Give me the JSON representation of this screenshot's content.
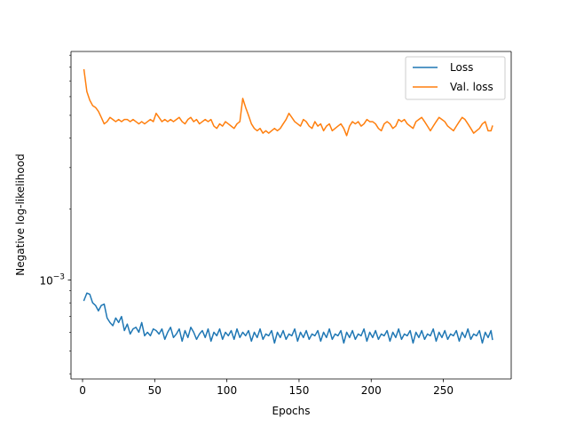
{
  "chart_data": {
    "type": "line",
    "xlabel": "Epochs",
    "ylabel": "Negative log-likelihood",
    "xlim": [
      -8,
      297
    ],
    "ylim_log10": [
      -3.42,
      -2.03
    ],
    "y_scale": "log",
    "x_ticks": [
      0,
      50,
      100,
      150,
      200,
      250
    ],
    "x_tick_labels": [
      "0",
      "50",
      "100",
      "150",
      "200",
      "250"
    ],
    "y_major_ticks": [
      {
        "value": 0.001,
        "label_base": "10",
        "label_exp": "−3"
      }
    ],
    "grid": false,
    "legend_position": "upper right",
    "series": [
      {
        "name": "Loss",
        "color": "#1f77b4",
        "x": [
          1,
          3,
          5,
          7,
          9,
          11,
          13,
          15,
          17,
          19,
          21,
          23,
          25,
          27,
          29,
          31,
          33,
          35,
          37,
          39,
          41,
          43,
          45,
          47,
          49,
          51,
          53,
          55,
          57,
          59,
          61,
          63,
          65,
          67,
          69,
          71,
          73,
          75,
          77,
          79,
          81,
          83,
          85,
          87,
          89,
          91,
          93,
          95,
          97,
          99,
          101,
          103,
          105,
          107,
          109,
          111,
          113,
          115,
          117,
          119,
          121,
          123,
          125,
          127,
          129,
          131,
          133,
          135,
          137,
          139,
          141,
          143,
          145,
          147,
          149,
          151,
          153,
          155,
          157,
          159,
          161,
          163,
          165,
          167,
          169,
          171,
          173,
          175,
          177,
          179,
          181,
          183,
          185,
          187,
          189,
          191,
          193,
          195,
          197,
          199,
          201,
          203,
          205,
          207,
          209,
          211,
          213,
          215,
          217,
          219,
          221,
          223,
          225,
          227,
          229,
          231,
          233,
          235,
          237,
          239,
          241,
          243,
          245,
          247,
          249,
          251,
          253,
          255,
          257,
          259,
          261,
          263,
          265,
          267,
          269,
          271,
          273,
          275,
          277,
          279,
          281,
          283,
          284
        ],
        "y": [
          0.00082,
          0.00088,
          0.00087,
          0.0008,
          0.00078,
          0.00074,
          0.00078,
          0.00079,
          0.00069,
          0.00066,
          0.00064,
          0.00069,
          0.00066,
          0.0007,
          0.00061,
          0.00065,
          0.00059,
          0.00062,
          0.00063,
          0.0006,
          0.00066,
          0.00058,
          0.0006,
          0.00058,
          0.00062,
          0.00061,
          0.00059,
          0.00062,
          0.00056,
          0.0006,
          0.00063,
          0.00057,
          0.00059,
          0.00062,
          0.00055,
          0.00061,
          0.00057,
          0.00063,
          0.0006,
          0.00056,
          0.00059,
          0.00061,
          0.00057,
          0.00062,
          0.00055,
          0.0006,
          0.00058,
          0.00062,
          0.00056,
          0.0006,
          0.00058,
          0.00061,
          0.00056,
          0.00062,
          0.00057,
          0.0006,
          0.00058,
          0.00061,
          0.00055,
          0.0006,
          0.00057,
          0.00062,
          0.00056,
          0.00059,
          0.00058,
          0.00061,
          0.00054,
          0.0006,
          0.00057,
          0.00061,
          0.00056,
          0.00059,
          0.00058,
          0.00062,
          0.00055,
          0.0006,
          0.00057,
          0.00061,
          0.00056,
          0.00059,
          0.00058,
          0.00061,
          0.00055,
          0.0006,
          0.00057,
          0.00062,
          0.00056,
          0.00059,
          0.00058,
          0.00061,
          0.00054,
          0.0006,
          0.00057,
          0.00061,
          0.00056,
          0.00059,
          0.00058,
          0.00062,
          0.00055,
          0.0006,
          0.00057,
          0.00061,
          0.00056,
          0.00059,
          0.00058,
          0.00061,
          0.00055,
          0.0006,
          0.00057,
          0.00062,
          0.00056,
          0.00059,
          0.00058,
          0.00061,
          0.00054,
          0.0006,
          0.00057,
          0.00061,
          0.00056,
          0.00059,
          0.00058,
          0.00062,
          0.00055,
          0.0006,
          0.00057,
          0.00061,
          0.00056,
          0.00059,
          0.00058,
          0.00061,
          0.00055,
          0.0006,
          0.00057,
          0.00062,
          0.00056,
          0.00059,
          0.00058,
          0.00061,
          0.00054,
          0.0006,
          0.00057,
          0.00061,
          0.00056
        ]
      },
      {
        "name": "Val. loss",
        "color": "#ff7f0e",
        "x": [
          1,
          3,
          5,
          7,
          9,
          11,
          13,
          15,
          17,
          19,
          21,
          23,
          25,
          27,
          29,
          31,
          33,
          35,
          37,
          39,
          41,
          43,
          45,
          47,
          49,
          51,
          53,
          55,
          57,
          59,
          61,
          63,
          65,
          67,
          69,
          71,
          73,
          75,
          77,
          79,
          81,
          83,
          85,
          87,
          89,
          91,
          93,
          95,
          97,
          99,
          101,
          103,
          105,
          107,
          109,
          111,
          113,
          115,
          117,
          119,
          121,
          123,
          125,
          127,
          129,
          131,
          133,
          135,
          137,
          139,
          141,
          143,
          145,
          147,
          149,
          151,
          153,
          155,
          157,
          159,
          161,
          163,
          165,
          167,
          169,
          171,
          173,
          175,
          177,
          179,
          181,
          183,
          185,
          187,
          189,
          191,
          193,
          195,
          197,
          199,
          201,
          203,
          205,
          207,
          209,
          211,
          213,
          215,
          217,
          219,
          221,
          223,
          225,
          227,
          229,
          231,
          233,
          235,
          237,
          239,
          241,
          243,
          245,
          247,
          249,
          251,
          253,
          255,
          257,
          259,
          261,
          263,
          265,
          267,
          269,
          271,
          273,
          275,
          277,
          279,
          281,
          283,
          284
        ],
        "y": [
          0.0078,
          0.0063,
          0.0058,
          0.0055,
          0.0054,
          0.0052,
          0.0049,
          0.0046,
          0.0047,
          0.0049,
          0.0048,
          0.0047,
          0.0048,
          0.0047,
          0.0048,
          0.0048,
          0.0047,
          0.0048,
          0.0047,
          0.0046,
          0.0047,
          0.0046,
          0.0047,
          0.0048,
          0.0047,
          0.0051,
          0.0049,
          0.0047,
          0.0048,
          0.0047,
          0.0048,
          0.0047,
          0.0048,
          0.0049,
          0.0047,
          0.0046,
          0.0048,
          0.0049,
          0.0047,
          0.0048,
          0.0046,
          0.0047,
          0.0048,
          0.0047,
          0.0048,
          0.0045,
          0.0044,
          0.0046,
          0.0045,
          0.0047,
          0.0046,
          0.0045,
          0.0044,
          0.0046,
          0.0047,
          0.0059,
          0.0054,
          0.005,
          0.0046,
          0.0044,
          0.0043,
          0.0044,
          0.0042,
          0.0043,
          0.0042,
          0.0043,
          0.0044,
          0.0043,
          0.0044,
          0.0046,
          0.0048,
          0.0051,
          0.0049,
          0.0047,
          0.0046,
          0.0045,
          0.0048,
          0.0047,
          0.0045,
          0.0044,
          0.0047,
          0.0045,
          0.0046,
          0.0043,
          0.0045,
          0.0046,
          0.0043,
          0.0044,
          0.0045,
          0.0046,
          0.0044,
          0.0041,
          0.0045,
          0.0047,
          0.0046,
          0.0047,
          0.0045,
          0.0046,
          0.0048,
          0.0047,
          0.0047,
          0.0046,
          0.0044,
          0.0043,
          0.0046,
          0.0047,
          0.0046,
          0.0044,
          0.0045,
          0.0048,
          0.0047,
          0.0048,
          0.0046,
          0.0045,
          0.0044,
          0.0047,
          0.0048,
          0.0049,
          0.0047,
          0.0045,
          0.0043,
          0.0045,
          0.0047,
          0.0049,
          0.0048,
          0.0047,
          0.0045,
          0.0044,
          0.0043,
          0.0045,
          0.0047,
          0.0049,
          0.0048,
          0.0046,
          0.0044,
          0.0042,
          0.0043,
          0.0044,
          0.0046,
          0.0047,
          0.0043,
          0.0043,
          0.0045
        ]
      }
    ]
  }
}
